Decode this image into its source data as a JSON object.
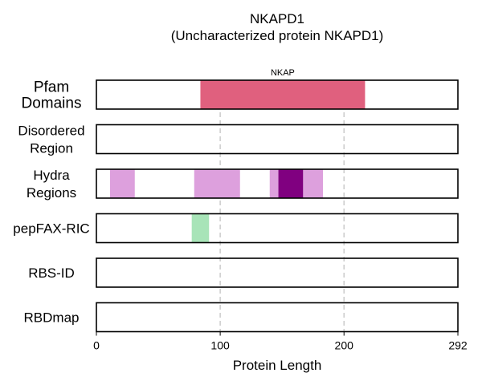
{
  "chart_data": {
    "type": "bar",
    "title": "NKAPD1",
    "subtitle": "(Uncharacterized protein NKAPD1)",
    "xlabel": "Protein Length",
    "xlim": [
      0,
      292
    ],
    "xticks": [
      0,
      100,
      200,
      292
    ],
    "gridlines": [
      100,
      200
    ],
    "rows": [
      {
        "label": [
          "Pfam",
          "Domains"
        ],
        "segments": [
          {
            "start": 84,
            "end": 217,
            "color": "#e0607e",
            "annotation": "NKAP"
          }
        ]
      },
      {
        "label": [
          "Disordered",
          "Region"
        ],
        "segments": []
      },
      {
        "label": [
          "Hydra",
          "Regions"
        ],
        "segments": [
          {
            "start": 11,
            "end": 31,
            "color": "#dda0dd"
          },
          {
            "start": 79,
            "end": 116,
            "color": "#dda0dd"
          },
          {
            "start": 140,
            "end": 147,
            "color": "#dda0dd"
          },
          {
            "start": 147,
            "end": 167,
            "color": "#800080"
          },
          {
            "start": 167,
            "end": 183,
            "color": "#dda0dd"
          }
        ]
      },
      {
        "label": [
          "pepFAX-RIC"
        ],
        "segments": [
          {
            "start": 77,
            "end": 91,
            "color": "#a8e4b8"
          }
        ]
      },
      {
        "label": [
          "RBS-ID"
        ],
        "segments": []
      },
      {
        "label": [
          "RBDmap"
        ],
        "segments": []
      }
    ]
  }
}
